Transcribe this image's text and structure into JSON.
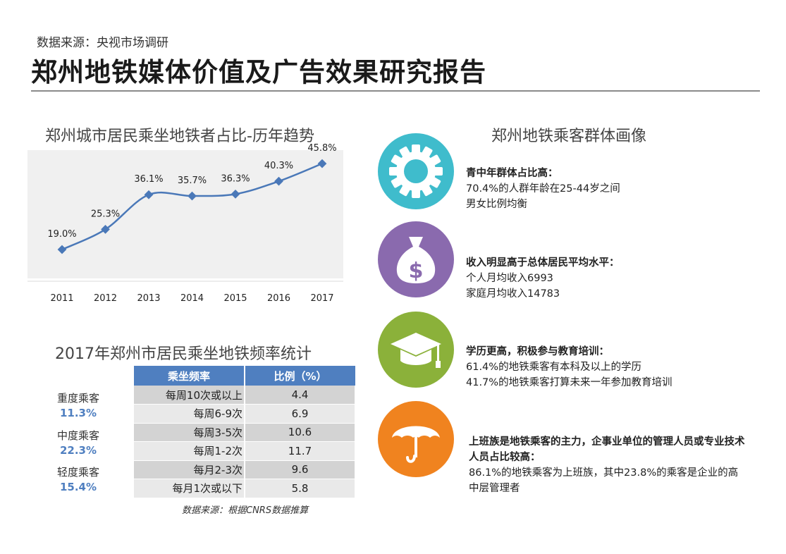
{
  "header": {
    "source": "数据来源：央视市场调研",
    "title": "郑州地铁媒体价值及广告效果研究报告"
  },
  "chart_data": {
    "type": "line",
    "title": "郑州城市居民乘坐地铁者占比-历年趋势",
    "categories": [
      "2011",
      "2012",
      "2013",
      "2014",
      "2015",
      "2016",
      "2017"
    ],
    "values": [
      19.0,
      25.3,
      36.1,
      35.7,
      36.3,
      40.3,
      45.8
    ],
    "value_labels": [
      "19.0%",
      "25.3%",
      "36.1%",
      "35.7%",
      "36.3%",
      "40.3%",
      "45.8%"
    ],
    "ylim": [
      10,
      50
    ],
    "grid": false,
    "line_color": "#4a78b8",
    "xlabel": "",
    "ylabel": ""
  },
  "freq_table": {
    "title": "2017年郑州市居民乘坐地铁频率统计",
    "headers": [
      "乘坐频率",
      "比例（%）"
    ],
    "rows": [
      {
        "freq": "每周10次或以上",
        "pct": "4.4"
      },
      {
        "freq": "每周6-9次",
        "pct": "6.9"
      },
      {
        "freq": "每周3-5次",
        "pct": "10.6"
      },
      {
        "freq": "每周1-2次",
        "pct": "11.7"
      },
      {
        "freq": "每月2-3次",
        "pct": "9.6"
      },
      {
        "freq": "每月1次或以下",
        "pct": "5.8"
      }
    ],
    "groups": [
      {
        "name": "重度乘客",
        "pct": "11.3%"
      },
      {
        "name": "中度乘客",
        "pct": "22.3%"
      },
      {
        "name": "轻度乘客",
        "pct": "15.4%"
      }
    ],
    "source": "数据来源：根据CNRS数据推算",
    "accent": "#4f7fc0"
  },
  "portrait": {
    "title": "郑州地铁乘客群体画像",
    "items": [
      {
        "icon": "gear-icon",
        "color": "#3fbccc",
        "heading": "青中年群体占比高：",
        "lines": [
          "70.4%的人群年龄在25-44岁之间",
          "男女比例均衡"
        ]
      },
      {
        "icon": "money-bag-icon",
        "color": "#8a6aae",
        "heading": "收入明显高于总体居民平均水平：",
        "lines": [
          "个人月均收入6993",
          "家庭月均收入14783"
        ]
      },
      {
        "icon": "graduation-cap-icon",
        "color": "#8bb13a",
        "heading": "学历更高，积极参与教育培训：",
        "lines": [
          "61.4%的地铁乘客有本科及以上的学历",
          "41.7%的地铁乘客打算未来一年参加教育培训"
        ]
      },
      {
        "icon": "umbrella-icon",
        "color": "#f0831f",
        "heading": "上班族是地铁乘客的主力，企事业单位的管理人员或专业技术人员占比较高：",
        "lines": [
          "86.1%的地铁乘客为上班族，其中23.8%的乘客是企业的高中层管理者"
        ]
      }
    ]
  }
}
